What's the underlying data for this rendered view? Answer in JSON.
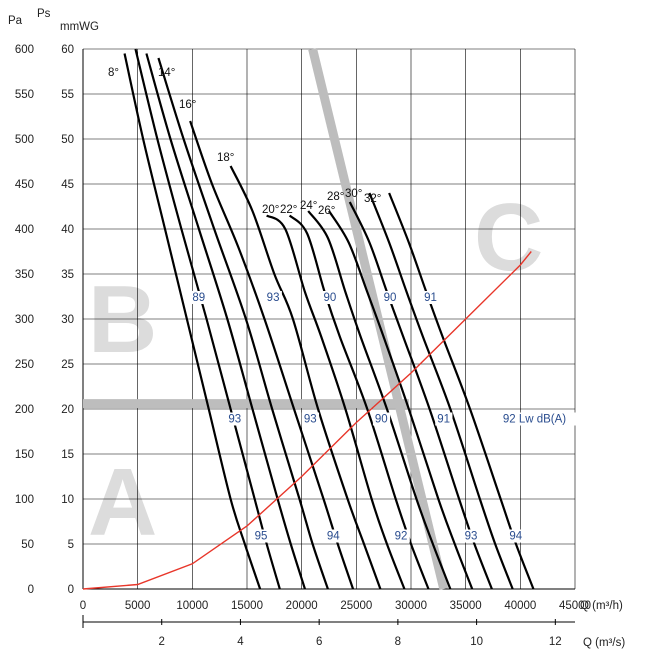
{
  "chart_data": {
    "type": "line",
    "title": "",
    "axes": {
      "y_left_unit": "Pa",
      "y_right_title": "Ps",
      "y_right_unit": "mmWG",
      "x_bottom_label": "Q (m³/h)",
      "x_secondary_label": "Q (m³/s)",
      "ylim_pa": [
        0,
        600
      ],
      "ylim_mmwg": [
        0,
        60
      ],
      "xlim_m3h": [
        0,
        45000
      ],
      "xlim_m3s": [
        0,
        12.5
      ]
    },
    "ticks": {
      "pa": [
        "0",
        "50",
        "100",
        "150",
        "200",
        "250",
        "300",
        "350",
        "400",
        "450",
        "500",
        "550",
        "600"
      ],
      "mmwg": [
        "0",
        "5",
        "10",
        "15",
        "20",
        "25",
        "30",
        "35",
        "40",
        "45",
        "50",
        "55",
        "60"
      ],
      "m3h": [
        "0",
        "5000",
        "10000",
        "15000",
        "20000",
        "25000",
        "30000",
        "35000",
        "40000",
        "45000"
      ],
      "m3s": [
        "2",
        "4",
        "6",
        "8",
        "10",
        "12"
      ]
    },
    "zones": [
      "A",
      "B",
      "C"
    ],
    "series": [
      {
        "name": "8°",
        "points": [
          [
            3800,
            595
          ],
          [
            5500,
            500
          ],
          [
            7500,
            400
          ],
          [
            9500,
            300
          ],
          [
            11500,
            200
          ],
          [
            13500,
            100
          ],
          [
            14800,
            50
          ],
          [
            16200,
            0
          ]
        ]
      },
      {
        "name": "",
        "points": [
          [
            4800,
            600
          ],
          [
            6800,
            500
          ],
          [
            9000,
            400
          ],
          [
            11300,
            300
          ],
          [
            13500,
            200
          ],
          [
            15700,
            100
          ],
          [
            16800,
            50
          ],
          [
            18000,
            0
          ]
        ]
      },
      {
        "name": "",
        "points": [
          [
            5800,
            595
          ],
          [
            8000,
            500
          ],
          [
            10600,
            400
          ],
          [
            13200,
            300
          ],
          [
            15500,
            200
          ],
          [
            17800,
            100
          ],
          [
            19000,
            50
          ],
          [
            20300,
            0
          ]
        ]
      },
      {
        "name": "14°",
        "points": [
          [
            6900,
            590
          ],
          [
            9200,
            500
          ],
          [
            12000,
            400
          ],
          [
            14900,
            300
          ],
          [
            17300,
            200
          ],
          [
            19800,
            100
          ],
          [
            21000,
            50
          ],
          [
            22400,
            0
          ]
        ]
      },
      {
        "name": "16°",
        "points": [
          [
            9800,
            520
          ],
          [
            11800,
            450
          ],
          [
            14200,
            380
          ],
          [
            16600,
            300
          ],
          [
            19300,
            200
          ],
          [
            22000,
            100
          ],
          [
            23300,
            50
          ],
          [
            24700,
            0
          ]
        ]
      },
      {
        "name": "18°",
        "points": [
          [
            13500,
            470
          ],
          [
            15500,
            420
          ],
          [
            17500,
            350
          ],
          [
            19200,
            300
          ],
          [
            21500,
            200
          ],
          [
            24200,
            100
          ],
          [
            25700,
            50
          ],
          [
            27200,
            0
          ]
        ]
      },
      {
        "name": "20°",
        "points": [
          [
            16800,
            415
          ],
          [
            18500,
            400
          ],
          [
            20300,
            330
          ],
          [
            21800,
            280
          ],
          [
            24000,
            200
          ],
          [
            26400,
            100
          ],
          [
            27800,
            50
          ],
          [
            29400,
            0
          ]
        ]
      },
      {
        "name": "22°",
        "points": [
          [
            18900,
            415
          ],
          [
            20500,
            395
          ],
          [
            22100,
            330
          ],
          [
            23500,
            280
          ],
          [
            26000,
            200
          ],
          [
            28600,
            100
          ],
          [
            30000,
            50
          ],
          [
            31600,
            0
          ]
        ]
      },
      {
        "name": "24°",
        "points": [
          [
            20600,
            420
          ],
          [
            22400,
            390
          ],
          [
            24000,
            330
          ],
          [
            25400,
            280
          ],
          [
            27800,
            200
          ],
          [
            30500,
            100
          ],
          [
            32000,
            50
          ],
          [
            33600,
            0
          ]
        ]
      },
      {
        "name": "26°",
        "points": [
          [
            22500,
            420
          ],
          [
            24300,
            385
          ],
          [
            26000,
            330
          ],
          [
            27500,
            280
          ],
          [
            29800,
            200
          ],
          [
            32500,
            100
          ],
          [
            34000,
            50
          ],
          [
            35600,
            0
          ]
        ]
      },
      {
        "name": "28°",
        "points": [
          [
            24400,
            430
          ],
          [
            26200,
            385
          ],
          [
            27800,
            330
          ],
          [
            29300,
            280
          ],
          [
            31700,
            200
          ],
          [
            34400,
            100
          ],
          [
            35800,
            50
          ],
          [
            37400,
            0
          ]
        ]
      },
      {
        "name": "30°",
        "points": [
          [
            26200,
            440
          ],
          [
            28000,
            385
          ],
          [
            29600,
            330
          ],
          [
            31100,
            280
          ],
          [
            33600,
            200
          ],
          [
            36300,
            100
          ],
          [
            37700,
            50
          ],
          [
            39300,
            0
          ]
        ]
      },
      {
        "name": "32°",
        "points": [
          [
            28000,
            440
          ],
          [
            29800,
            385
          ],
          [
            31400,
            330
          ],
          [
            32900,
            280
          ],
          [
            35400,
            200
          ],
          [
            38200,
            100
          ],
          [
            39600,
            50
          ],
          [
            41200,
            0
          ]
        ]
      }
    ],
    "system_curve": {
      "points": [
        [
          0,
          0
        ],
        [
          5000,
          5
        ],
        [
          10000,
          28
        ],
        [
          15000,
          70
        ],
        [
          20000,
          125
        ],
        [
          25000,
          185
        ],
        [
          30000,
          240
        ],
        [
          35000,
          300
        ],
        [
          40000,
          360
        ],
        [
          41000,
          375
        ]
      ]
    },
    "angle_labels": [
      "8°",
      "14°",
      "16°",
      "18°",
      "20°",
      "22°",
      "24°",
      "26°",
      "28°",
      "30°",
      "32°"
    ],
    "lw_labels": [
      {
        "text": "89",
        "x": 10000,
        "y": 320
      },
      {
        "text": "93",
        "x": 16800,
        "y": 320
      },
      {
        "text": "90",
        "x": 22000,
        "y": 320
      },
      {
        "text": "90",
        "x": 27500,
        "y": 320
      },
      {
        "text": "91",
        "x": 31200,
        "y": 320
      },
      {
        "text": "93",
        "x": 13300,
        "y": 185
      },
      {
        "text": "93",
        "x": 20200,
        "y": 185
      },
      {
        "text": "90",
        "x": 26700,
        "y": 185
      },
      {
        "text": "91",
        "x": 32400,
        "y": 185
      },
      {
        "text": "92 Lw dB(A)",
        "x": 38400,
        "y": 185
      },
      {
        "text": "95",
        "x": 15700,
        "y": 55
      },
      {
        "text": "94",
        "x": 22300,
        "y": 55
      },
      {
        "text": "92",
        "x": 28500,
        "y": 55
      },
      {
        "text": "93",
        "x": 34900,
        "y": 55
      },
      {
        "text": "94",
        "x": 39000,
        "y": 55
      }
    ],
    "grid": true
  }
}
